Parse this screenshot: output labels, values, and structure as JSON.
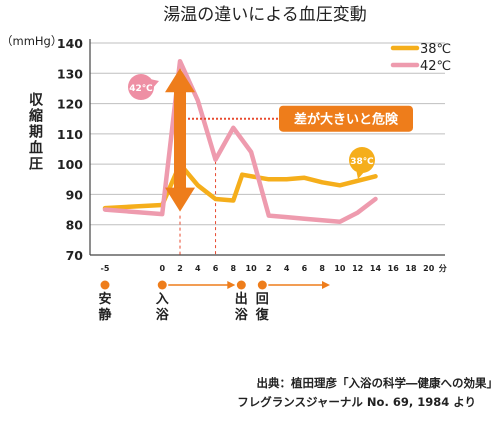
{
  "chart_data": {
    "type": "line",
    "title": "湯温の違いによる血圧変動",
    "unit_label": "（mmHg）",
    "ylabel": "収縮期血圧",
    "x_unit": "分",
    "ylim": [
      70,
      140
    ],
    "y_ticks": [
      "70",
      "80",
      "90",
      "100",
      "110",
      "120",
      "130",
      "140"
    ],
    "x_ticks": [
      "-5",
      "0",
      "2",
      "4",
      "6",
      "8",
      "10",
      "2",
      "4",
      "6",
      "8",
      "10",
      "12",
      "14",
      "16",
      "18",
      "20"
    ],
    "grid": true,
    "legend_position": "top-right",
    "series": [
      {
        "name": "38℃",
        "color": "#F5AE1B",
        "points": [
          [
            -5,
            85.5
          ],
          [
            0,
            86.5
          ],
          [
            2,
            100
          ],
          [
            4,
            93
          ],
          [
            6,
            88.5
          ],
          [
            8,
            88
          ],
          [
            9,
            96.5
          ],
          [
            12,
            95
          ],
          [
            14,
            95
          ],
          [
            16,
            95.5
          ],
          [
            18,
            94
          ],
          [
            20,
            93
          ],
          [
            22,
            94.5
          ],
          [
            24,
            96
          ]
        ]
      },
      {
        "name": "42℃",
        "color": "#EE9BAE",
        "points": [
          [
            -5,
            85
          ],
          [
            0,
            83.5
          ],
          [
            2,
            134
          ],
          [
            4,
            121
          ],
          [
            6,
            101.5
          ],
          [
            8,
            112
          ],
          [
            10,
            104
          ],
          [
            12,
            83
          ],
          [
            14,
            82.5
          ],
          [
            16,
            82
          ],
          [
            18,
            81.5
          ],
          [
            20,
            81
          ],
          [
            22,
            84
          ],
          [
            24,
            88.5
          ]
        ]
      }
    ],
    "annotations": {
      "bubble_42": "42℃",
      "bubble_38": "38℃",
      "callout": "差が大きいと危険"
    },
    "phases": [
      {
        "label": "安静"
      },
      {
        "label": "入浴"
      },
      {
        "label": "出浴"
      },
      {
        "label": "回復"
      }
    ],
    "source_line1": "出典：植田理彦「入浴の科学―健康への効果」",
    "source_line2": "フレグランスジャーナル No. 69, 1984 より"
  },
  "colors": {
    "orange": "#EE7D1B",
    "axis": "#444444",
    "grid": "#bfbfbf",
    "text": "#222222"
  }
}
